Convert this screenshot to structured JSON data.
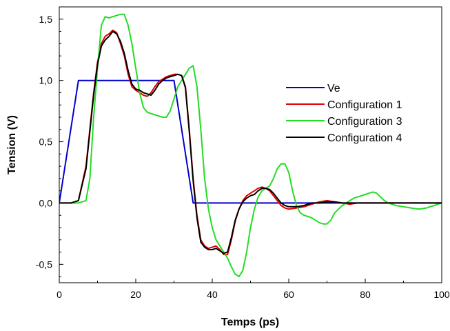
{
  "chart_data": {
    "type": "line",
    "xlabel": "Temps (ps)",
    "ylabel": "Tension (V)",
    "xlim": [
      0,
      100
    ],
    "ylim": [
      -0.65,
      1.6
    ],
    "x_ticks": [
      0,
      20,
      40,
      60,
      80,
      100
    ],
    "x_tick_labels": [
      "0",
      "20",
      "40",
      "60",
      "80",
      "100"
    ],
    "y_ticks": [
      -0.5,
      0.0,
      0.5,
      1.0,
      1.5
    ],
    "y_tick_labels": [
      "-0,5",
      "0,0",
      "0,5",
      "1,0",
      "1,5"
    ],
    "grid": false,
    "legend_position": "right",
    "series": [
      {
        "name": "Ve",
        "color": "#0000cc",
        "points": [
          [
            0,
            0
          ],
          [
            5,
            1.0
          ],
          [
            30,
            1.0
          ],
          [
            35,
            0
          ],
          [
            100,
            0
          ]
        ]
      },
      {
        "name": "Configuration 1",
        "color": "#e00000",
        "points": [
          [
            0,
            0
          ],
          [
            3,
            0
          ],
          [
            5,
            0.02
          ],
          [
            7,
            0.3
          ],
          [
            9,
            0.9
          ],
          [
            10,
            1.15
          ],
          [
            11,
            1.3
          ],
          [
            12,
            1.36
          ],
          [
            13,
            1.38
          ],
          [
            14,
            1.41
          ],
          [
            15,
            1.39
          ],
          [
            16,
            1.3
          ],
          [
            17,
            1.2
          ],
          [
            18,
            1.05
          ],
          [
            19,
            0.95
          ],
          [
            20,
            0.92
          ],
          [
            21,
            0.9
          ],
          [
            22,
            0.88
          ],
          [
            23,
            0.87
          ],
          [
            24,
            0.9
          ],
          [
            25,
            0.95
          ],
          [
            26,
            0.99
          ],
          [
            27,
            1.01
          ],
          [
            28,
            1.03
          ],
          [
            29,
            1.04
          ],
          [
            30,
            1.05
          ],
          [
            31,
            1.05
          ],
          [
            32,
            1.04
          ],
          [
            33,
            0.95
          ],
          [
            34,
            0.6
          ],
          [
            35,
            0.2
          ],
          [
            36,
            -0.1
          ],
          [
            37,
            -0.3
          ],
          [
            38,
            -0.35
          ],
          [
            39,
            -0.37
          ],
          [
            40,
            -0.36
          ],
          [
            41,
            -0.35
          ],
          [
            42,
            -0.38
          ],
          [
            43,
            -0.42
          ],
          [
            44,
            -0.42
          ],
          [
            45,
            -0.3
          ],
          [
            46,
            -0.15
          ],
          [
            47,
            -0.05
          ],
          [
            48,
            0.02
          ],
          [
            49,
            0.06
          ],
          [
            50,
            0.08
          ],
          [
            51,
            0.1
          ],
          [
            52,
            0.12
          ],
          [
            53,
            0.13
          ],
          [
            54,
            0.12
          ],
          [
            55,
            0.1
          ],
          [
            56,
            0.06
          ],
          [
            57,
            0.02
          ],
          [
            58,
            -0.02
          ],
          [
            59,
            -0.04
          ],
          [
            60,
            -0.05
          ],
          [
            62,
            -0.04
          ],
          [
            64,
            -0.03
          ],
          [
            66,
            -0.01
          ],
          [
            68,
            0.01
          ],
          [
            70,
            0.02
          ],
          [
            72,
            0.01
          ],
          [
            74,
            0.0
          ],
          [
            76,
            -0.01
          ],
          [
            78,
            0.0
          ],
          [
            80,
            0.0
          ],
          [
            90,
            0.0
          ],
          [
            100,
            0.0
          ]
        ]
      },
      {
        "name": "Configuration 3",
        "color": "#22dd22",
        "points": [
          [
            0,
            0
          ],
          [
            4,
            0
          ],
          [
            5,
            0
          ],
          [
            6,
            0.01
          ],
          [
            7,
            0.02
          ],
          [
            8,
            0.2
          ],
          [
            9,
            0.7
          ],
          [
            10,
            1.1
          ],
          [
            11,
            1.45
          ],
          [
            12,
            1.52
          ],
          [
            13,
            1.51
          ],
          [
            14,
            1.52
          ],
          [
            15,
            1.53
          ],
          [
            16,
            1.54
          ],
          [
            17,
            1.54
          ],
          [
            18,
            1.45
          ],
          [
            19,
            1.3
          ],
          [
            20,
            1.1
          ],
          [
            21,
            0.9
          ],
          [
            22,
            0.78
          ],
          [
            23,
            0.74
          ],
          [
            24,
            0.73
          ],
          [
            25,
            0.72
          ],
          [
            26,
            0.71
          ],
          [
            27,
            0.7
          ],
          [
            28,
            0.7
          ],
          [
            29,
            0.75
          ],
          [
            30,
            0.85
          ],
          [
            31,
            0.95
          ],
          [
            32,
            1.0
          ],
          [
            33,
            1.05
          ],
          [
            34,
            1.1
          ],
          [
            35,
            1.12
          ],
          [
            36,
            0.95
          ],
          [
            37,
            0.6
          ],
          [
            38,
            0.2
          ],
          [
            39,
            -0.05
          ],
          [
            40,
            -0.2
          ],
          [
            41,
            -0.3
          ],
          [
            42,
            -0.35
          ],
          [
            43,
            -0.4
          ],
          [
            44,
            -0.45
          ],
          [
            45,
            -0.52
          ],
          [
            46,
            -0.58
          ],
          [
            47,
            -0.6
          ],
          [
            48,
            -0.55
          ],
          [
            49,
            -0.4
          ],
          [
            50,
            -0.2
          ],
          [
            51,
            -0.05
          ],
          [
            52,
            0.05
          ],
          [
            53,
            0.1
          ],
          [
            54,
            0.12
          ],
          [
            55,
            0.14
          ],
          [
            56,
            0.2
          ],
          [
            57,
            0.28
          ],
          [
            58,
            0.32
          ],
          [
            59,
            0.32
          ],
          [
            60,
            0.25
          ],
          [
            61,
            0.1
          ],
          [
            62,
            -0.02
          ],
          [
            63,
            -0.08
          ],
          [
            64,
            -0.1
          ],
          [
            65,
            -0.11
          ],
          [
            66,
            -0.12
          ],
          [
            67,
            -0.14
          ],
          [
            68,
            -0.16
          ],
          [
            69,
            -0.17
          ],
          [
            70,
            -0.17
          ],
          [
            71,
            -0.14
          ],
          [
            72,
            -0.08
          ],
          [
            73,
            -0.05
          ],
          [
            74,
            -0.02
          ],
          [
            75,
            0.0
          ],
          [
            76,
            0.02
          ],
          [
            77,
            0.04
          ],
          [
            78,
            0.05
          ],
          [
            79,
            0.06
          ],
          [
            80,
            0.07
          ],
          [
            81,
            0.08
          ],
          [
            82,
            0.09
          ],
          [
            83,
            0.08
          ],
          [
            84,
            0.05
          ],
          [
            85,
            0.02
          ],
          [
            86,
            0.0
          ],
          [
            87,
            -0.01
          ],
          [
            88,
            -0.02
          ],
          [
            90,
            -0.03
          ],
          [
            92,
            -0.04
          ],
          [
            94,
            -0.05
          ],
          [
            96,
            -0.04
          ],
          [
            98,
            -0.02
          ],
          [
            100,
            0.0
          ]
        ]
      },
      {
        "name": "Configuration 4",
        "color": "#000000",
        "points": [
          [
            0,
            0
          ],
          [
            3,
            0
          ],
          [
            5,
            0.02
          ],
          [
            7,
            0.28
          ],
          [
            9,
            0.88
          ],
          [
            10,
            1.13
          ],
          [
            11,
            1.28
          ],
          [
            12,
            1.33
          ],
          [
            13,
            1.36
          ],
          [
            14,
            1.4
          ],
          [
            15,
            1.38
          ],
          [
            16,
            1.32
          ],
          [
            17,
            1.22
          ],
          [
            18,
            1.08
          ],
          [
            19,
            0.97
          ],
          [
            20,
            0.93
          ],
          [
            21,
            0.92
          ],
          [
            22,
            0.9
          ],
          [
            23,
            0.89
          ],
          [
            24,
            0.88
          ],
          [
            25,
            0.92
          ],
          [
            26,
            0.97
          ],
          [
            27,
            1.0
          ],
          [
            28,
            1.02
          ],
          [
            29,
            1.03
          ],
          [
            30,
            1.04
          ],
          [
            31,
            1.05
          ],
          [
            32,
            1.04
          ],
          [
            33,
            0.94
          ],
          [
            34,
            0.58
          ],
          [
            35,
            0.18
          ],
          [
            36,
            -0.12
          ],
          [
            37,
            -0.32
          ],
          [
            38,
            -0.36
          ],
          [
            39,
            -0.38
          ],
          [
            40,
            -0.38
          ],
          [
            41,
            -0.37
          ],
          [
            42,
            -0.39
          ],
          [
            43,
            -0.41
          ],
          [
            44,
            -0.4
          ],
          [
            45,
            -0.28
          ],
          [
            46,
            -0.14
          ],
          [
            47,
            -0.05
          ],
          [
            48,
            0.01
          ],
          [
            49,
            0.04
          ],
          [
            50,
            0.06
          ],
          [
            51,
            0.07
          ],
          [
            52,
            0.1
          ],
          [
            53,
            0.12
          ],
          [
            54,
            0.12
          ],
          [
            55,
            0.11
          ],
          [
            56,
            0.08
          ],
          [
            57,
            0.04
          ],
          [
            58,
            0.0
          ],
          [
            59,
            -0.02
          ],
          [
            60,
            -0.03
          ],
          [
            62,
            -0.03
          ],
          [
            64,
            -0.02
          ],
          [
            66,
            0.0
          ],
          [
            68,
            0.0
          ],
          [
            70,
            0.01
          ],
          [
            72,
            0.01
          ],
          [
            74,
            0.0
          ],
          [
            76,
            0.0
          ],
          [
            80,
            0.0
          ],
          [
            90,
            0.0
          ],
          [
            100,
            0.0
          ]
        ]
      }
    ]
  }
}
